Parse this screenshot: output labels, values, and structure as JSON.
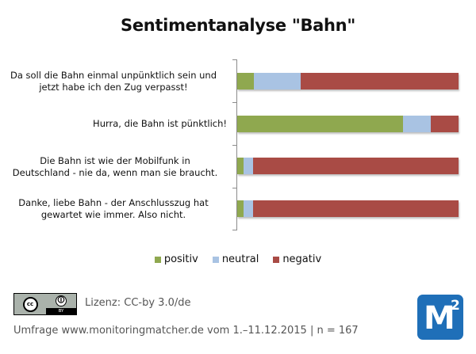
{
  "title": "Sentimentanalyse \"Bahn\"",
  "chart_data": {
    "type": "bar",
    "orientation": "horizontal",
    "stacked": "100%",
    "title": "Sentimentanalyse \"Bahn\"",
    "xlabel": "",
    "ylabel": "",
    "grid": false,
    "legend_position": "bottom",
    "categories": [
      "Da soll die Bahn einmal unpünktlich sein und jetzt habe ich den Zug verpasst!",
      "Hurra, die Bahn ist pünktlich!",
      "Die Bahn ist wie der Mobilfunk in Deutschland - nie da, wenn man sie braucht.",
      "Danke, liebe Bahn - der Anschlusszug hat gewartet wie immer. Also nicht."
    ],
    "series": [
      {
        "name": "positiv",
        "color": "#8fa84f",
        "values": [
          7.5,
          75,
          3,
          3
        ]
      },
      {
        "name": "neutral",
        "color": "#a9c3e3",
        "values": [
          21,
          12.5,
          4,
          4
        ]
      },
      {
        "name": "negativ",
        "color": "#a94b45",
        "values": [
          71.5,
          12.5,
          93,
          93
        ]
      }
    ],
    "xlim": [
      0,
      100
    ]
  },
  "rows": [
    {
      "line1": "Da soll die Bahn einmal unpünktlich sein und",
      "line2": "jetzt habe ich den Zug verpasst!"
    },
    {
      "line1": "Hurra, die Bahn ist pünktlich!",
      "line2": ""
    },
    {
      "line1": "Die Bahn ist wie der Mobilfunk in",
      "line2": "Deutschland - nie da, wenn man sie braucht."
    },
    {
      "line1": "Danke, liebe Bahn - der Anschlusszug hat",
      "line2": "gewartet wie immer. Also nicht."
    }
  ],
  "legend": {
    "positiv": "positiv",
    "neutral": "neutral",
    "negativ": "negativ"
  },
  "footer": {
    "cc_text": "cc",
    "by_text": "BY",
    "license": "Lizenz: CC-by 3.0/de",
    "survey": "Umfrage www.monitoringmatcher.de vom 1.–11.12.2015 | n = 167"
  },
  "logo": {
    "letter": "M",
    "superscript": "2",
    "color": "#1f6fb8"
  }
}
